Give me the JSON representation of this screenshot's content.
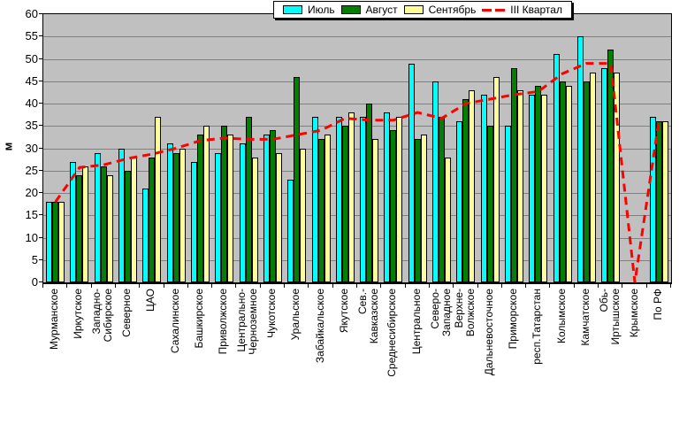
{
  "chart_data": {
    "type": "bar",
    "title": "",
    "ylabel": "м",
    "ylim": [
      0,
      60
    ],
    "ytick_step": 5,
    "yticks": [
      0,
      5,
      10,
      15,
      20,
      25,
      30,
      35,
      40,
      45,
      50,
      55,
      60
    ],
    "grid": true,
    "plot_bg": "#c0c0c0",
    "gridline_color": "#808080",
    "legend_position": "top",
    "categories": [
      "Мурманское",
      "Иркутское",
      "Западно-\nСибирское",
      "Северное",
      "ЦАО",
      "Сахалинское",
      "Башкирское",
      "Приволжское",
      "Центрально-\nЧерноземное",
      "Чукотское",
      "Уральское",
      "Забайкальское",
      "Якутское",
      "Сев.-\nКавказское",
      "Среднесибирское",
      "Центральное",
      "Северо-\nЗападное",
      "Верхне-\nВолжское",
      "Дальневосточное",
      "Приморское",
      "респ.Татарстан",
      "Колымское",
      "Камчатское",
      "Обь-\nИртышское",
      "Крымское",
      "По РФ"
    ],
    "series": [
      {
        "name": "Июль",
        "kind": "bar",
        "color": "#00ffff",
        "values": [
          18,
          27,
          29,
          30,
          21,
          31,
          27,
          29,
          31,
          33,
          23,
          37,
          37,
          37,
          38,
          49,
          45,
          36,
          42,
          35,
          42,
          51,
          55,
          48,
          0,
          37
        ]
      },
      {
        "name": "Август",
        "kind": "bar",
        "color": "#008000",
        "values": [
          18,
          24,
          26,
          25,
          28,
          29,
          33,
          35,
          37,
          34,
          46,
          32,
          35,
          40,
          34,
          32,
          37,
          41,
          35,
          48,
          44,
          45,
          45,
          52,
          0,
          36
        ]
      },
      {
        "name": "Сентябрь",
        "kind": "bar",
        "color": "#ffff99",
        "values": [
          18,
          26,
          24,
          28,
          37,
          30,
          35,
          33,
          28,
          29,
          30,
          33,
          38,
          32,
          37,
          33,
          28,
          43,
          46,
          43,
          42,
          44,
          47,
          47,
          0,
          36
        ]
      },
      {
        "name": "III Квартал",
        "kind": "dashed-line",
        "color": "#ff0000",
        "values": [
          18,
          25.7,
          26.3,
          27.7,
          28.7,
          30,
          31.7,
          32.3,
          32,
          32,
          33,
          34,
          36.7,
          36.3,
          36.3,
          38,
          36.7,
          40,
          41,
          42,
          42.7,
          46.7,
          49,
          49,
          0,
          36.3
        ]
      }
    ]
  }
}
